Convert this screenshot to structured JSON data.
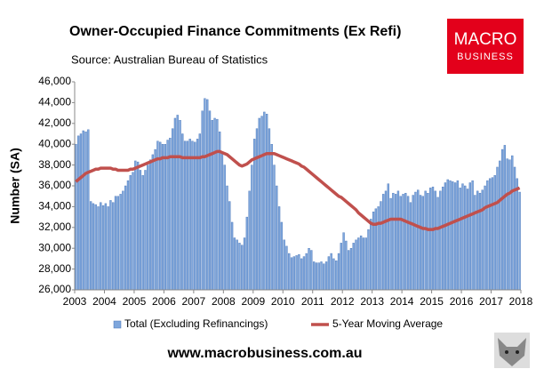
{
  "chart_data": {
    "type": "bar-line",
    "title": "Owner-Occupied Finance Commitments (Ex Refi)",
    "subtitle": "Source: Australian  Bureau of Statistics",
    "y_label": "Number (SA)",
    "xlim": [
      2003,
      2018
    ],
    "xticks": [
      2003,
      2004,
      2005,
      2006,
      2007,
      2008,
      2009,
      2010,
      2011,
      2012,
      2013,
      2014,
      2015,
      2016,
      2017,
      2018
    ],
    "ylim": [
      26000,
      46000
    ],
    "yticks": [
      {
        "value": 26000,
        "label": "26,000"
      },
      {
        "value": 28000,
        "label": "28,000"
      },
      {
        "value": 30000,
        "label": "30,000"
      },
      {
        "value": 32000,
        "label": "32,000"
      },
      {
        "value": 34000,
        "label": "34,000"
      },
      {
        "value": 36000,
        "label": "36,000"
      },
      {
        "value": 38000,
        "label": "38,000"
      },
      {
        "value": 40000,
        "label": "40,000"
      },
      {
        "value": 42000,
        "label": "42,000"
      },
      {
        "value": 44000,
        "label": "44,000"
      },
      {
        "value": 46000,
        "label": "46,000"
      }
    ],
    "grid": false,
    "x": [
      2003.042,
      2003.125,
      2003.208,
      2003.292,
      2003.375,
      2003.458,
      2003.542,
      2003.625,
      2003.708,
      2003.792,
      2003.875,
      2003.958,
      2004.042,
      2004.125,
      2004.208,
      2004.292,
      2004.375,
      2004.458,
      2004.542,
      2004.625,
      2004.708,
      2004.792,
      2004.875,
      2004.958,
      2005.042,
      2005.125,
      2005.208,
      2005.292,
      2005.375,
      2005.458,
      2005.542,
      2005.625,
      2005.708,
      2005.792,
      2005.875,
      2005.958,
      2006.042,
      2006.125,
      2006.208,
      2006.292,
      2006.375,
      2006.458,
      2006.542,
      2006.625,
      2006.708,
      2006.792,
      2006.875,
      2006.958,
      2007.042,
      2007.125,
      2007.208,
      2007.292,
      2007.375,
      2007.458,
      2007.542,
      2007.625,
      2007.708,
      2007.792,
      2007.875,
      2007.958,
      2008.042,
      2008.125,
      2008.208,
      2008.292,
      2008.375,
      2008.458,
      2008.542,
      2008.625,
      2008.708,
      2008.792,
      2008.875,
      2008.958,
      2009.042,
      2009.125,
      2009.208,
      2009.292,
      2009.375,
      2009.458,
      2009.542,
      2009.625,
      2009.708,
      2009.792,
      2009.875,
      2009.958,
      2010.042,
      2010.125,
      2010.208,
      2010.292,
      2010.375,
      2010.458,
      2010.542,
      2010.625,
      2010.708,
      2010.792,
      2010.875,
      2010.958,
      2011.042,
      2011.125,
      2011.208,
      2011.292,
      2011.375,
      2011.458,
      2011.542,
      2011.625,
      2011.708,
      2011.792,
      2011.875,
      2011.958,
      2012.042,
      2012.125,
      2012.208,
      2012.292,
      2012.375,
      2012.458,
      2012.542,
      2012.625,
      2012.708,
      2012.792,
      2012.875,
      2012.958,
      2013.042,
      2013.125,
      2013.208,
      2013.292,
      2013.375,
      2013.458,
      2013.542,
      2013.625,
      2013.708,
      2013.792,
      2013.875,
      2013.958,
      2014.042,
      2014.125,
      2014.208,
      2014.292,
      2014.375,
      2014.458,
      2014.542,
      2014.625,
      2014.708,
      2014.792,
      2014.875,
      2014.958,
      2015.042,
      2015.125,
      2015.208,
      2015.292,
      2015.375,
      2015.458,
      2015.542,
      2015.625,
      2015.708,
      2015.792,
      2015.875,
      2015.958,
      2016.042,
      2016.125,
      2016.208,
      2016.292,
      2016.375,
      2016.458,
      2016.542,
      2016.625,
      2016.708,
      2016.792,
      2016.875,
      2016.958,
      2017.042,
      2017.125,
      2017.208,
      2017.292,
      2017.375,
      2017.458,
      2017.542,
      2017.625,
      2017.708,
      2017.792,
      2017.875,
      2017.958
    ],
    "series": [
      {
        "name": "Total (Excluding Refinancings)",
        "kind": "bar",
        "color": "#7ea6dc",
        "values": [
          40000,
          40800,
          41000,
          41300,
          41200,
          41400,
          34500,
          34300,
          34200,
          34000,
          34400,
          34100,
          34300,
          34000,
          34600,
          34400,
          35000,
          35000,
          35200,
          35500,
          36000,
          36500,
          37000,
          37300,
          38400,
          38300,
          37500,
          37000,
          37500,
          38000,
          38500,
          39000,
          39500,
          40300,
          40200,
          40000,
          40000,
          40400,
          40600,
          41500,
          42500,
          42800,
          42300,
          41000,
          40300,
          40300,
          40500,
          40300,
          40200,
          40500,
          41000,
          43200,
          44400,
          44300,
          43200,
          42300,
          42500,
          42400,
          41200,
          39200,
          38000,
          36000,
          34500,
          32500,
          31000,
          30800,
          30500,
          30300,
          31000,
          33000,
          35500,
          38000,
          40500,
          41500,
          42500,
          42700,
          43100,
          42900,
          41500,
          40000,
          38000,
          36000,
          34000,
          32500,
          30800,
          30200,
          29500,
          29100,
          29200,
          29300,
          29400,
          29000,
          29200,
          29500,
          30000,
          29800,
          28700,
          28600,
          28600,
          28700,
          28500,
          28700,
          29200,
          29500,
          29000,
          28800,
          29500,
          30500,
          31500,
          30700,
          29800,
          30000,
          30500,
          30800,
          31000,
          31200,
          31000,
          31000,
          31800,
          32800,
          33500,
          33800,
          34000,
          34500,
          35200,
          35500,
          36200,
          34800,
          35300,
          35200,
          35500,
          35000,
          35200,
          35300,
          35000,
          34400,
          35100,
          35400,
          35600,
          35100,
          35000,
          35500,
          35300,
          35800,
          35900,
          35500,
          34900,
          35500,
          35900,
          36300,
          36600,
          36500,
          36400,
          36300,
          36500,
          35800,
          36200,
          36000,
          35700,
          36300,
          36500,
          35100,
          35500,
          35300,
          35600,
          36000,
          36500,
          36700,
          36800,
          37000,
          37800,
          38400,
          39500,
          39900,
          38600,
          38500,
          38900,
          37800,
          36700,
          35400
        ]
      },
      {
        "name": "5-Year Moving Average",
        "kind": "line",
        "color": "#c0504d",
        "values": [
          36400,
          36600,
          36800,
          37000,
          37200,
          37300,
          37400,
          37500,
          37600,
          37600,
          37700,
          37700,
          37700,
          37700,
          37700,
          37600,
          37600,
          37500,
          37500,
          37500,
          37500,
          37500,
          37600,
          37600,
          37700,
          37800,
          37900,
          38000,
          38100,
          38200,
          38300,
          38400,
          38500,
          38600,
          38600,
          38700,
          38700,
          38700,
          38800,
          38800,
          38800,
          38800,
          38800,
          38700,
          38700,
          38700,
          38700,
          38700,
          38700,
          38700,
          38700,
          38800,
          38800,
          38900,
          39000,
          39100,
          39200,
          39300,
          39300,
          39200,
          39100,
          39000,
          38800,
          38600,
          38400,
          38200,
          38000,
          37900,
          38000,
          38100,
          38300,
          38500,
          38600,
          38700,
          38800,
          38900,
          39000,
          39100,
          39100,
          39100,
          39100,
          39000,
          38900,
          38800,
          38700,
          38600,
          38500,
          38400,
          38300,
          38200,
          38100,
          37900,
          37800,
          37600,
          37400,
          37200,
          37000,
          36800,
          36600,
          36400,
          36200,
          36000,
          35800,
          35600,
          35400,
          35200,
          35000,
          34900,
          34700,
          34500,
          34300,
          34100,
          33900,
          33700,
          33400,
          33200,
          33000,
          32800,
          32600,
          32400,
          32300,
          32300,
          32400,
          32400,
          32500,
          32600,
          32700,
          32800,
          32800,
          32800,
          32800,
          32800,
          32700,
          32600,
          32500,
          32400,
          32300,
          32200,
          32100,
          32000,
          31900,
          31900,
          31800,
          31800,
          31800,
          31900,
          31900,
          32000,
          32100,
          32200,
          32300,
          32400,
          32500,
          32600,
          32700,
          32800,
          32900,
          33000,
          33100,
          33200,
          33300,
          33400,
          33500,
          33600,
          33700,
          33900,
          34000,
          34100,
          34200,
          34300,
          34400,
          34600,
          34800,
          35000,
          35200,
          35300,
          35500,
          35600,
          35700,
          35800
        ]
      }
    ]
  },
  "logo": {
    "line1": "MACRO",
    "line2": "BUSINESS"
  },
  "footer": "www.macrobusiness.com.au"
}
